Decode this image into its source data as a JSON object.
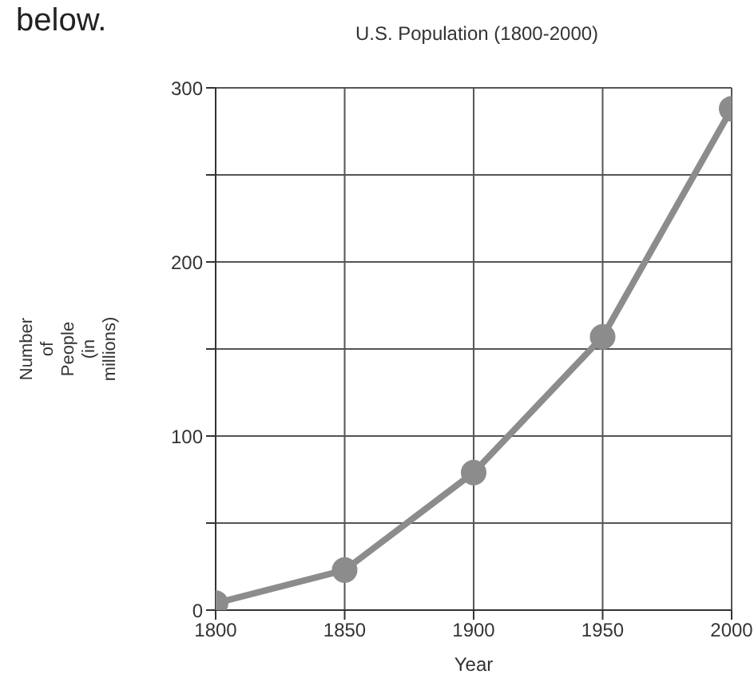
{
  "chart_data": {
    "type": "line",
    "title": "U.S. Population (1800-2000)",
    "xlabel": "Year",
    "ylabel": "Number of People (in millions)",
    "annotations": [
      "below."
    ],
    "x": [
      1800,
      1850,
      1900,
      1950,
      2000
    ],
    "series": [
      {
        "color": "#8c8c8c",
        "values": [
          4,
          23,
          79,
          157,
          288
        ]
      }
    ],
    "xlim": [
      1800,
      2000
    ],
    "xticks": [
      1800,
      1850,
      1900,
      1950,
      2000
    ],
    "ylim": [
      0,
      300
    ],
    "yticks": [
      0,
      {
        "value": 50,
        "label": null
      },
      100,
      {
        "value": 150,
        "label": null
      },
      200,
      {
        "value": 250,
        "label": null
      },
      300
    ],
    "grid": true,
    "marker": "circle",
    "line_style": "solid"
  }
}
